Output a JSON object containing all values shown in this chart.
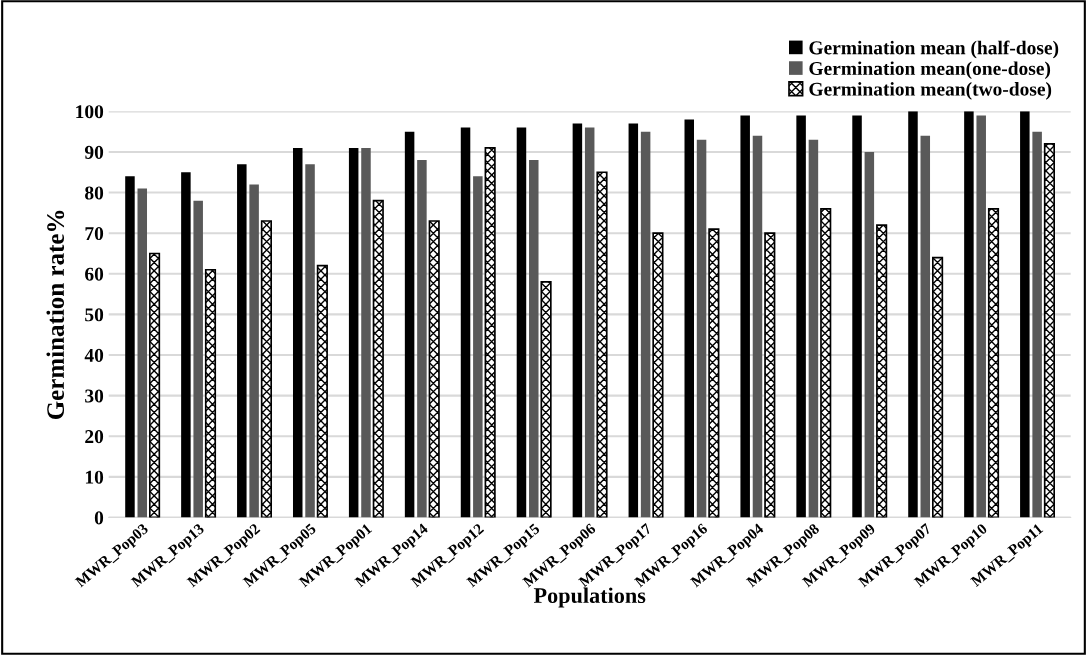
{
  "chart_data": {
    "type": "bar",
    "xlabel": "Populations",
    "ylabel": "Germination rate%",
    "categories": [
      "MWR_Pop03",
      "MWR_Pop13",
      "MWR_Pop02",
      "MWR_Pop05",
      "MWR_Pop01",
      "MWR_Pop14",
      "MWR_Pop12",
      "MWR_Pop15",
      "MWR_Pop06",
      "MWR_Pop17",
      "MWR_Pop16",
      "MWR_Pop04",
      "MWR_Pop08",
      "MWR_Pop09",
      "MWR_Pop07",
      "MWR_Pop10",
      "MWR_Pop11"
    ],
    "series": [
      {
        "name": "Germination mean (half-dose)",
        "color": "#000000",
        "values": [
          84,
          85,
          87,
          91,
          91,
          95,
          96,
          96,
          97,
          97,
          98,
          99,
          99,
          99,
          100,
          100,
          100
        ]
      },
      {
        "name": "Germination mean(one-dose)",
        "color": "#595959",
        "values": [
          81,
          78,
          82,
          87,
          91,
          88,
          84,
          88,
          96,
          95,
          93,
          94,
          93,
          90,
          94,
          99,
          95
        ]
      },
      {
        "name": "Germination mean(two-dose)",
        "color": "#000000",
        "values": [
          65,
          61,
          73,
          62,
          78,
          73,
          91,
          58,
          85,
          70,
          71,
          70,
          76,
          72,
          64,
          76,
          92
        ]
      }
    ],
    "ylim": [
      0,
      100
    ],
    "yticks": [
      0,
      10,
      20,
      30,
      40,
      50,
      60,
      70,
      80,
      90,
      100
    ],
    "grid": "y",
    "legend": "top right"
  }
}
